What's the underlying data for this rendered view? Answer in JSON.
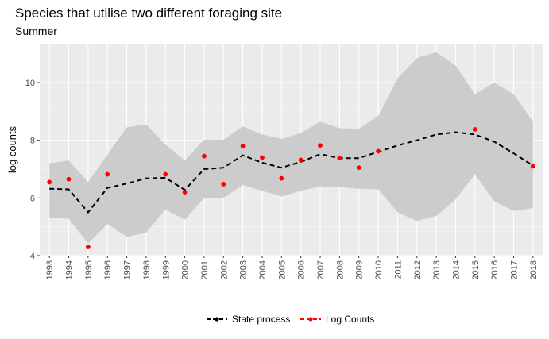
{
  "title": "Species that utilise two different foraging site",
  "subtitle": "Summer",
  "legend": {
    "state_label": "State process",
    "counts_label": "Log Counts"
  },
  "chart_data": {
    "type": "line",
    "title": "Species that utilise two different foraging site",
    "subtitle": "Summer",
    "xlabel": "",
    "ylabel": "log counts",
    "ylim": [
      4,
      11.35
    ],
    "yticks": [
      4,
      6,
      8,
      10
    ],
    "x": [
      "1993",
      "1994",
      "1995",
      "1996",
      "1997",
      "1998",
      "1999",
      "2000",
      "2001",
      "2002",
      "2003",
      "2004",
      "2005",
      "2006",
      "2007",
      "2008",
      "2009",
      "2010",
      "2011",
      "2012",
      "2013",
      "2014",
      "2015",
      "2016",
      "2017",
      "2018"
    ],
    "series": [
      {
        "name": "State process",
        "kind": "line-dashed",
        "color": "#000000",
        "values": [
          6.32,
          6.3,
          5.5,
          6.35,
          6.5,
          6.68,
          6.7,
          6.28,
          7.0,
          7.05,
          7.48,
          7.22,
          7.05,
          7.25,
          7.52,
          7.38,
          7.38,
          7.6,
          7.82,
          8.0,
          8.2,
          8.28,
          8.2,
          7.95,
          7.55,
          7.12
        ]
      },
      {
        "name": "Log Counts",
        "kind": "points",
        "color": "#ff0000",
        "values": [
          6.55,
          6.65,
          4.3,
          6.82,
          null,
          null,
          6.82,
          6.2,
          7.45,
          6.48,
          7.8,
          7.4,
          6.68,
          7.32,
          7.82,
          7.38,
          7.05,
          7.62,
          null,
          null,
          null,
          null,
          8.38,
          null,
          null,
          7.1
        ]
      }
    ],
    "band": {
      "name": "confidence interval",
      "color": "#cccccc",
      "upper": [
        7.2,
        7.3,
        6.55,
        7.5,
        8.45,
        8.55,
        7.85,
        7.3,
        8.02,
        8.02,
        8.48,
        8.2,
        8.05,
        8.25,
        8.65,
        8.42,
        8.4,
        8.85,
        10.15,
        10.85,
        11.05,
        10.6,
        9.6,
        10.0,
        9.6,
        8.65
      ],
      "lower": [
        5.32,
        5.28,
        4.42,
        5.1,
        4.65,
        4.8,
        5.6,
        5.25,
        6.0,
        6.0,
        6.45,
        6.25,
        6.05,
        6.25,
        6.4,
        6.38,
        6.32,
        6.3,
        5.5,
        5.2,
        5.38,
        5.95,
        6.82,
        5.88,
        5.55,
        5.65
      ]
    },
    "grid": true,
    "legend_position": "bottom",
    "x_tick_rotation": 90
  }
}
